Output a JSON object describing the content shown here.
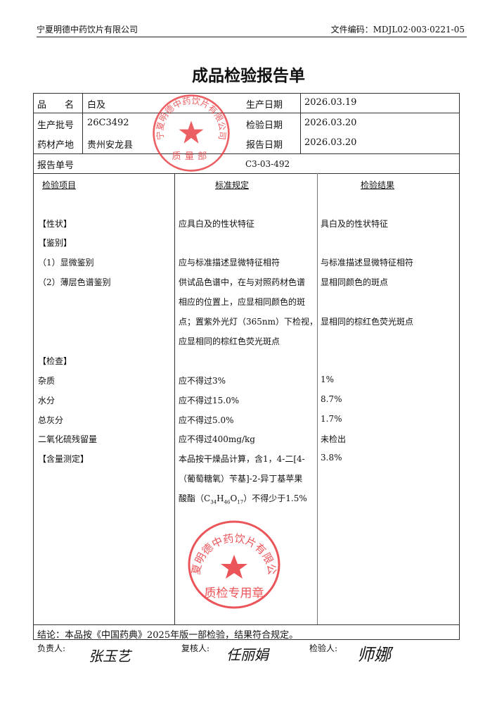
{
  "header": {
    "company": "宁夏明德中药饮片有限公司",
    "doc_code": "文件编码：MDJL02·003·0221-05"
  },
  "title": "成品检验报告单",
  "info": {
    "name_label": "品　　名",
    "name_value": "白及",
    "prod_date_label": "生产日期",
    "prod_date_value": "2026.03.19",
    "batch_label": "生产批号",
    "batch_value": "26C3492",
    "test_date_label": "检验日期",
    "test_date_value": "2026.03.20",
    "origin_label": "药材产地",
    "origin_value": "贵州安龙县",
    "report_date_label": "报告日期",
    "report_date_value": "2026.03.20",
    "report_no_label": "报告单号",
    "report_no_value": "C3-03-492"
  },
  "table": {
    "headers": [
      "检验项目",
      "标准规定",
      "检验结果"
    ],
    "rows": [
      {
        "item": "【性状】",
        "standard": "应具白及的性状特征",
        "result": "具白及的性状特征"
      },
      {
        "item": "【鉴别】",
        "standard": "",
        "result": ""
      },
      {
        "item": "（1）显微鉴别",
        "standard": "应与标准描述显微特征相符",
        "result": "与标准描述显微特征相符"
      },
      {
        "item": "（2）薄层色谱鉴别",
        "standard": "供试品色谱中，在与对照药材色谱",
        "result": "显相同颜色的斑点"
      },
      {
        "item": "",
        "standard": "相应的位置上，应显相同颜色的斑",
        "result": ""
      },
      {
        "item": "",
        "standard": "点；置紫外光灯（365nm）下检视，",
        "result": "显相同的棕红色荧光斑点"
      },
      {
        "item": "",
        "standard": "应显相同的棕红色荧光斑点",
        "result": ""
      },
      {
        "item": "【检查】",
        "standard": "",
        "result": ""
      },
      {
        "item": "杂质",
        "standard": "应不得过3%",
        "result": "1%"
      },
      {
        "item": "水分",
        "standard": "应不得过15.0%",
        "result": "8.7%"
      },
      {
        "item": "总灰分",
        "standard": "应不得过5.0%",
        "result": "1.7%"
      },
      {
        "item": "二氧化硫残留量",
        "standard": "应不得过400mg/kg",
        "result": "未检出"
      },
      {
        "item": "【含量测定】",
        "standard": "本品按干燥品计算，含1，4-二[4-",
        "result": "3.8%"
      },
      {
        "item": "",
        "standard": "（葡萄糖氧）苄基]-2-异丁基苹果",
        "result": ""
      }
    ],
    "last_standard": {
      "prefix": "酸酯（C",
      "sub1": "34",
      "h": "H",
      "sub2": "46",
      "o": "O",
      "sub3": "17",
      "suffix": "）不得少于1.5%"
    }
  },
  "conclusion": "结论：本品按《中国药典》2025年版一部检验，结果符合规定。",
  "signatures": {
    "responsible_label": "负责人:",
    "responsible_sig": "张玉艺",
    "reviewer_label": "复核人:",
    "reviewer_sig": "任丽娟",
    "inspector_label": "检验人:",
    "inspector_sig": "师娜"
  },
  "stamps": {
    "top": {
      "ring": "宁夏明德中药饮片有限公司",
      "center": "质量部"
    },
    "bottom": {
      "ring": "宁夏明德中药饮片有限公司",
      "center": "质检专用章"
    },
    "color": "#e8383d"
  }
}
